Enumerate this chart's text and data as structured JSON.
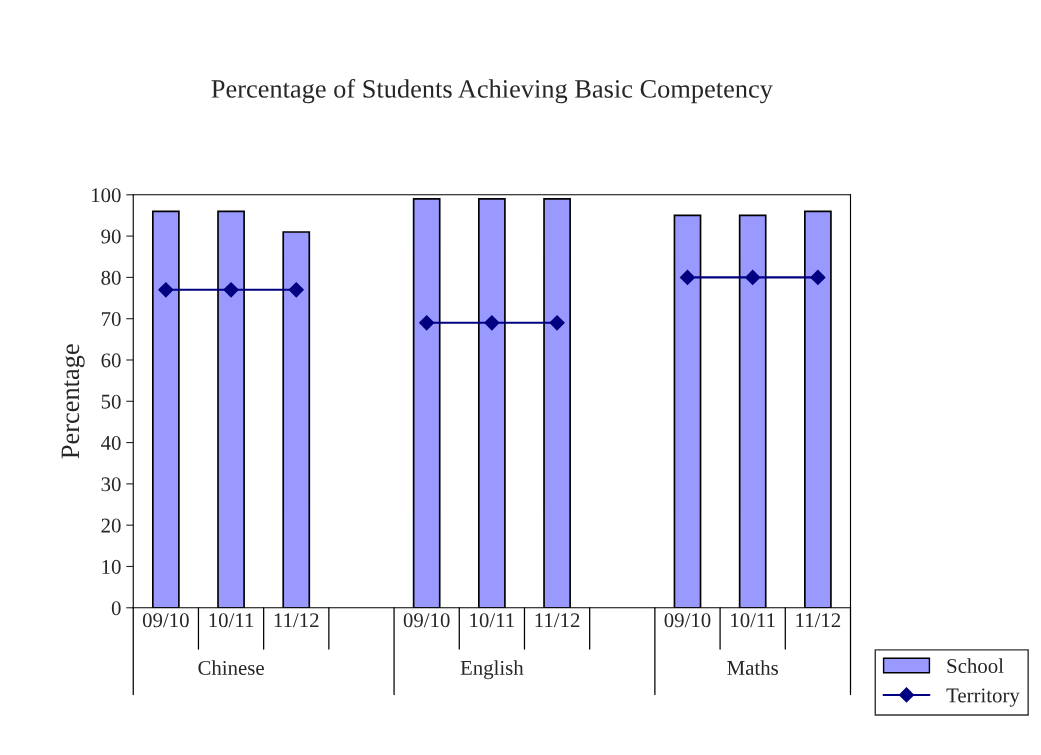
{
  "chart_data": {
    "type": "bar",
    "title": "Percentage of Students Achieving Basic Competency",
    "ylabel": "Percentage",
    "categories": [
      "09/10",
      "10/11",
      "11/12",
      null,
      "09/10",
      "10/11",
      "11/12",
      null,
      "09/10",
      "10/11",
      "11/12"
    ],
    "series": [
      {
        "name": "School",
        "type": "bar",
        "color": "#9999ff",
        "values": [
          96,
          96,
          91,
          null,
          99,
          99,
          99,
          null,
          95,
          95,
          96
        ]
      },
      {
        "name": "Territory",
        "type": "line",
        "color": "#000080",
        "marker": "diamond",
        "line_style": "solid",
        "values": [
          77,
          77,
          77,
          null,
          69,
          69,
          69,
          null,
          80,
          80,
          80
        ]
      }
    ],
    "annotations": [
      "Chinese",
      "English",
      "Maths"
    ],
    "ylim": [
      0,
      100
    ],
    "yticks": [
      0,
      10,
      20,
      30,
      40,
      50,
      60,
      70,
      80,
      90,
      100
    ],
    "grid": false,
    "legend": "bottom right"
  }
}
